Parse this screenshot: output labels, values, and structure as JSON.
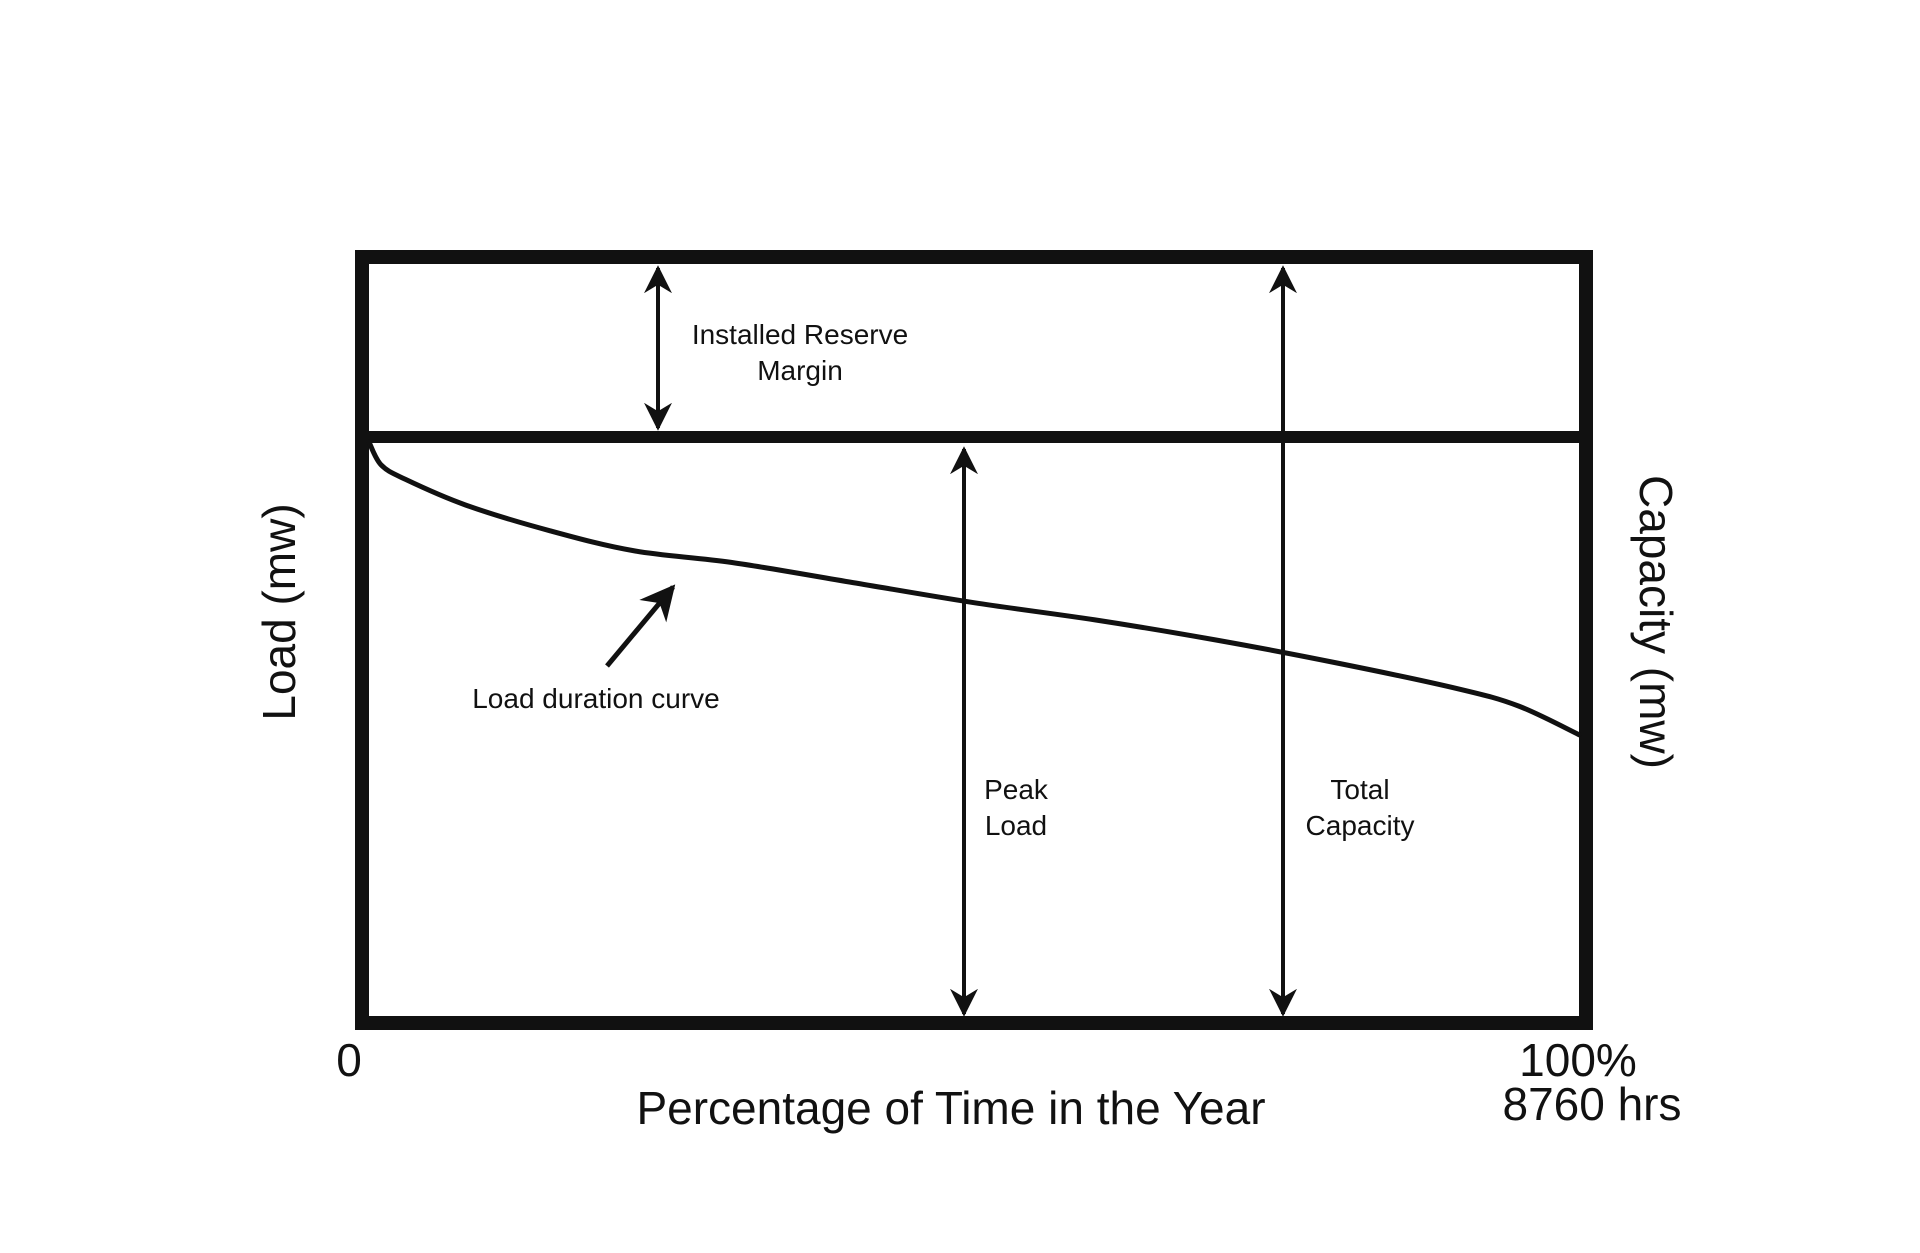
{
  "diagram": {
    "axes": {
      "x_label": "Percentage of Time in the Year",
      "x_start": "0",
      "x_end_percent": "100%",
      "x_end_hours": "8760 hrs",
      "y_left_label": "Load (mw)",
      "y_right_label": "Capacity (mw)"
    },
    "annotations": {
      "reserve_line1": "Installed Reserve",
      "reserve_line2": "Margin",
      "curve_label": "Load duration curve",
      "peak_line1": "Peak",
      "peak_line2": "Load",
      "total_line1": "Total",
      "total_line2": "Capacity"
    },
    "colors": {
      "ink": "#111111",
      "background": "#ffffff"
    }
  },
  "chart_data": {
    "type": "line",
    "x": [
      0,
      1,
      3,
      8,
      15,
      22,
      30,
      40,
      50,
      60,
      70,
      80,
      90,
      95,
      100
    ],
    "y": [
      100,
      96,
      93.5,
      89,
      84.5,
      81,
      79,
      75.5,
      72,
      69,
      65.5,
      61.5,
      57,
      54,
      49
    ],
    "xlim": [
      0,
      100
    ],
    "ylim": [
      0,
      131
    ],
    "grid": false
  }
}
